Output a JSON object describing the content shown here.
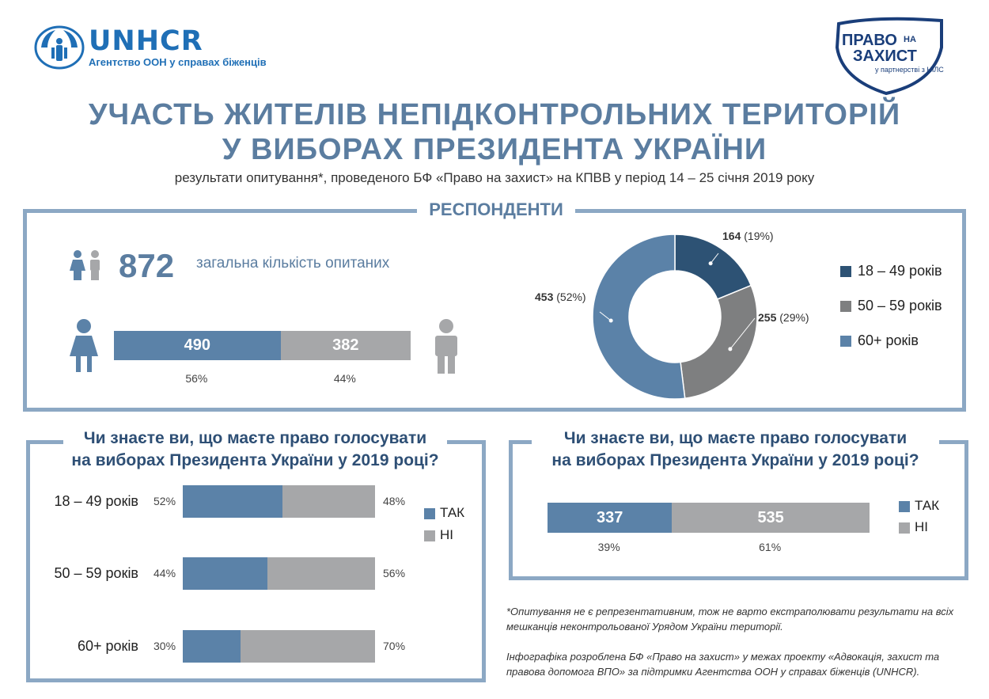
{
  "header": {
    "unhcr_name": "UNHCR",
    "unhcr_sub": "Агентство ООН у справах біженців",
    "pravo_line1": "ПРАВО",
    "pravo_na": "НА",
    "pravo_line2": "ЗАХИСТ",
    "pravo_partner": "у партнерстві з НІЛС"
  },
  "title": {
    "line1": "УЧАСТЬ ЖИТЕЛІВ НЕПІДКОНТРОЛЬНИХ ТЕРИТОРІЙ",
    "line2": "У ВИБОРАХ ПРЕЗИДЕНТА УКРАЇНИ",
    "subtitle": "результати опитування*, проведеного БФ «Право на захист» на КПВВ  у період 14 – 25 січня 2019 року"
  },
  "respondents": {
    "section_title": "РЕСПОНДЕНТИ",
    "total": "872",
    "total_label": "загальна кількість опитаних"
  },
  "colors": {
    "frame": "#8ca8c4",
    "blue": "#5b82a8",
    "gray": "#a6a7a9",
    "dark": "#2d5274",
    "mid_gray": "#7e7f80"
  },
  "chart_data": [
    {
      "type": "bar",
      "orientation": "horizontal-stacked",
      "categories": [
        "жінки",
        "чоловіки"
      ],
      "values": [
        490,
        382
      ],
      "value_labels": [
        "490",
        "382"
      ],
      "percent_labels": [
        "56%",
        "44%"
      ],
      "percents": [
        56,
        44
      ]
    },
    {
      "type": "pie",
      "donut": true,
      "labels": [
        "18 – 49 років",
        "50 – 59 років",
        "60+ років"
      ],
      "values": [
        164,
        255,
        453
      ],
      "value_labels": [
        "164",
        "255",
        "453"
      ],
      "percent_labels": [
        "(19%)",
        "(29%)",
        "(52%)"
      ],
      "colors": [
        "#2d5274",
        "#7e7f80",
        "#5b82a8"
      ],
      "legend": "right"
    },
    {
      "type": "bar",
      "orientation": "horizontal-stacked-100",
      "title": "Чи знаєте ви, що маєте право голосувати на виборах Президента України у 2019 році?",
      "categories": [
        "18 – 49 років",
        "50 – 59 років",
        "60+ років"
      ],
      "series": [
        {
          "name": "ТАК",
          "values": [
            52,
            44,
            30
          ],
          "labels": [
            "52%",
            "44%",
            "30%"
          ]
        },
        {
          "name": "НІ",
          "values": [
            48,
            56,
            70
          ],
          "labels": [
            "48%",
            "56%",
            "70%"
          ]
        }
      ],
      "legend": "right"
    },
    {
      "type": "bar",
      "orientation": "horizontal-stacked",
      "title": "Чи знаєте ви, що маєте право голосувати на виборах Президента України у 2019 році?",
      "series": [
        {
          "name": "ТАК",
          "value": 337,
          "value_label": "337",
          "percent_label": "39%",
          "percent": 39
        },
        {
          "name": "НІ",
          "value": 535,
          "value_label": "535",
          "percent_label": "61%",
          "percent": 61
        }
      ],
      "legend": "right"
    }
  ],
  "questions": {
    "left_line1": "Чи знаєте ви, що маєте право голосувати",
    "left_line2": "на виборах Президента України у 2019 році?",
    "right_line1": "Чи знаєте ви, що маєте право голосувати",
    "right_line2": "на виборах Президента України у 2019 році?"
  },
  "footnotes": {
    "note1": "*Опитування не є репрезентативним, тож не варто екстраполювати результати на всіх мешканців неконтрольованої Урядом України території.",
    "note2": "Інфографіка розроблена БФ «Право на захист» у межах проекту «Адвокація, захист та правова допомога ВПО» за підтримки Агентства ООН у справах біженців (UNHCR)."
  }
}
